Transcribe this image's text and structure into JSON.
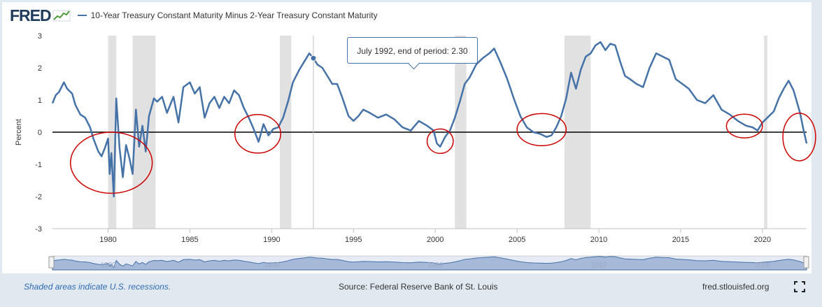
{
  "header": {
    "logo": "FRED",
    "logo_graph_icon": "line-graph-icon",
    "legend_label": "10-Year Treasury Constant Maturity Minus 2-Year Treasury Constant Maturity"
  },
  "tooltip": {
    "label": "July 1992, end of period:",
    "value": "2.30"
  },
  "footer": {
    "note": "Shaded areas indicate U.S. recessions.",
    "source": "Source: Federal Reserve Bank of St. Louis",
    "site": "fred.stlouisfed.org",
    "fullscreen_icon": "fullscreen-icon"
  },
  "colors": {
    "line": "#4572a7",
    "recession": "#e1e1e1",
    "annotation": "#cc0000",
    "zero_line": "#000000",
    "background": "#e1e9f0"
  },
  "chart_data": {
    "type": "line",
    "title": "",
    "xlabel": "",
    "ylabel": "Percent",
    "xlim": [
      1976.6,
      2022.7
    ],
    "ylim": [
      -3,
      3
    ],
    "y_ticks": [
      3,
      2,
      1,
      0,
      -1,
      -2,
      -3
    ],
    "x_ticks": [
      1980,
      1985,
      1990,
      1995,
      2000,
      2005,
      2010,
      2015,
      2020
    ],
    "zero_line": true,
    "grid": false,
    "recessions": [
      [
        1980.0,
        1980.5
      ],
      [
        1981.5,
        1982.9
      ],
      [
        1990.5,
        1991.2
      ],
      [
        2001.2,
        2001.9
      ],
      [
        2007.9,
        2009.5
      ],
      [
        2020.1,
        2020.3
      ]
    ],
    "annotation_circles": [
      {
        "center": [
          1980.2,
          -0.95
        ],
        "radius_years": 2.5,
        "radius_value": 0.95
      },
      {
        "center": [
          1989.15,
          -0.05
        ],
        "radius_years": 1.4,
        "radius_value": 0.6
      },
      {
        "center": [
          2000.3,
          -0.28
        ],
        "radius_years": 0.8,
        "radius_value": 0.38
      },
      {
        "center": [
          2006.5,
          0.08
        ],
        "radius_years": 1.5,
        "radius_value": 0.5
      },
      {
        "center": [
          2018.9,
          0.19
        ],
        "radius_years": 1.1,
        "radius_value": 0.37
      },
      {
        "center": [
          2022.25,
          -0.15
        ],
        "radius_years": 1.0,
        "radius_value": 0.74
      }
    ],
    "series": [
      {
        "name": "10-Year Treasury Constant Maturity Minus 2-Year Treasury Constant Maturity",
        "x": [
          1976.6,
          1976.8,
          1977.0,
          1977.3,
          1977.5,
          1977.8,
          1978.0,
          1978.3,
          1978.6,
          1978.9,
          1979.1,
          1979.4,
          1979.6,
          1979.8,
          1980.0,
          1980.1,
          1980.2,
          1980.35,
          1980.5,
          1980.7,
          1980.9,
          1981.1,
          1981.3,
          1981.5,
          1981.7,
          1981.9,
          1982.1,
          1982.3,
          1982.5,
          1982.8,
          1983.0,
          1983.3,
          1983.6,
          1984.0,
          1984.3,
          1984.6,
          1985.0,
          1985.3,
          1985.6,
          1985.9,
          1986.2,
          1986.5,
          1986.8,
          1987.1,
          1987.4,
          1987.7,
          1988.0,
          1988.3,
          1988.6,
          1988.9,
          1989.2,
          1989.5,
          1989.8,
          1990.1,
          1990.4,
          1990.7,
          1991.0,
          1991.3,
          1991.7,
          1992.0,
          1992.3,
          1992.55,
          1992.8,
          1993.1,
          1993.4,
          1993.7,
          1994.0,
          1994.3,
          1994.7,
          1995.0,
          1995.3,
          1995.6,
          1996.0,
          1996.5,
          1997.0,
          1997.5,
          1998.0,
          1998.5,
          1999.0,
          1999.5,
          1999.9,
          2000.1,
          2000.3,
          2000.6,
          2000.9,
          2001.2,
          2001.5,
          2001.8,
          2002.1,
          2002.5,
          2002.9,
          2003.3,
          2003.6,
          2004.0,
          2004.4,
          2004.8,
          2005.2,
          2005.6,
          2006.0,
          2006.4,
          2006.8,
          2007.1,
          2007.4,
          2007.7,
          2008.0,
          2008.3,
          2008.6,
          2008.9,
          2009.2,
          2009.5,
          2009.8,
          2010.1,
          2010.4,
          2010.7,
          2011.0,
          2011.3,
          2011.6,
          2011.9,
          2012.3,
          2012.7,
          2013.1,
          2013.5,
          2013.9,
          2014.3,
          2014.7,
          2015.1,
          2015.5,
          2016.0,
          2016.5,
          2017.0,
          2017.5,
          2018.0,
          2018.5,
          2019.0,
          2019.4,
          2019.7,
          2020.0,
          2020.3,
          2020.7,
          2021.0,
          2021.3,
          2021.6,
          2021.9,
          2022.1,
          2022.3,
          2022.5,
          2022.7
        ],
        "values": [
          0.9,
          1.15,
          1.25,
          1.55,
          1.35,
          1.2,
          0.85,
          0.55,
          0.45,
          0.15,
          -0.2,
          -0.6,
          -0.75,
          -0.5,
          -0.2,
          -1.3,
          -0.65,
          -2.0,
          1.05,
          -0.5,
          -1.4,
          -0.4,
          -0.8,
          -1.3,
          0.7,
          -0.45,
          0.2,
          -0.6,
          0.5,
          1.05,
          0.95,
          1.1,
          0.6,
          1.1,
          0.3,
          1.4,
          1.55,
          1.2,
          1.4,
          0.45,
          0.9,
          1.1,
          0.75,
          1.1,
          0.9,
          1.3,
          1.15,
          0.75,
          0.45,
          0.1,
          -0.3,
          0.25,
          -0.1,
          0.1,
          0.15,
          0.45,
          0.95,
          1.55,
          1.95,
          2.2,
          2.45,
          2.3,
          2.1,
          2.0,
          1.75,
          1.5,
          1.5,
          1.1,
          0.5,
          0.35,
          0.5,
          0.7,
          0.6,
          0.45,
          0.55,
          0.4,
          0.15,
          0.05,
          0.35,
          0.2,
          0.05,
          -0.35,
          -0.45,
          -0.15,
          0.05,
          0.45,
          0.95,
          1.5,
          1.7,
          2.1,
          2.3,
          2.45,
          2.6,
          2.15,
          1.65,
          1.05,
          0.5,
          0.15,
          0.0,
          -0.05,
          -0.15,
          -0.1,
          0.15,
          0.5,
          1.05,
          1.85,
          1.35,
          1.95,
          2.35,
          2.45,
          2.7,
          2.8,
          2.55,
          2.75,
          2.7,
          2.2,
          1.75,
          1.65,
          1.5,
          1.4,
          2.0,
          2.45,
          2.35,
          2.25,
          1.65,
          1.5,
          1.35,
          1.0,
          0.9,
          1.15,
          0.7,
          0.55,
          0.35,
          0.2,
          0.15,
          0.05,
          0.3,
          0.45,
          0.65,
          1.05,
          1.35,
          1.6,
          1.3,
          0.95,
          0.6,
          0.1,
          -0.35
        ]
      }
    ]
  }
}
